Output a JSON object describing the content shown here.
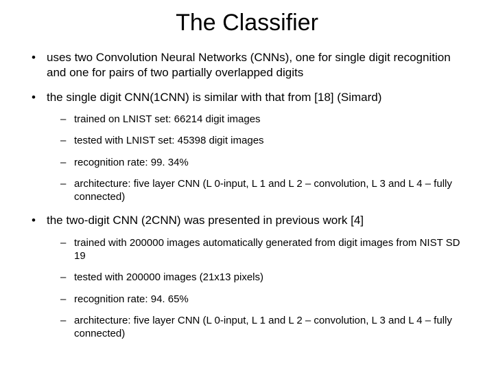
{
  "slide": {
    "title": "The Classifier",
    "title_fontsize": 34,
    "body_fontsize": 17,
    "sub_fontsize": 15,
    "background_color": "#ffffff",
    "text_color": "#000000",
    "font_family": "Arial",
    "bullets": [
      {
        "text": "uses two Convolution Neural Networks (CNNs), one for single digit recognition and one for pairs of two partially overlapped digits",
        "children": []
      },
      {
        "text": "the single digit CNN(1CNN) is similar with that from [18] (Simard)",
        "children": [
          {
            "text": "trained on LNIST set: 66214 digit images"
          },
          {
            "text": "tested with LNIST set: 45398 digit images"
          },
          {
            "text": "recognition rate: 99. 34%"
          },
          {
            "text": "architecture: five layer CNN (L 0-input, L 1 and L 2 – convolution, L 3 and L 4 – fully connected)"
          }
        ]
      },
      {
        "text": "the two-digit CNN (2CNN) was presented in previous work [4]",
        "children": [
          {
            "text": "trained with 200000 images automatically generated from digit images from NIST SD 19"
          },
          {
            "text": "tested with 200000 images (21x13 pixels)"
          },
          {
            "text": "recognition rate: 94. 65%"
          },
          {
            "text": "architecture: five layer CNN (L 0-input, L 1 and L 2 – convolution, L 3 and L 4 – fully connected)"
          }
        ]
      }
    ]
  }
}
